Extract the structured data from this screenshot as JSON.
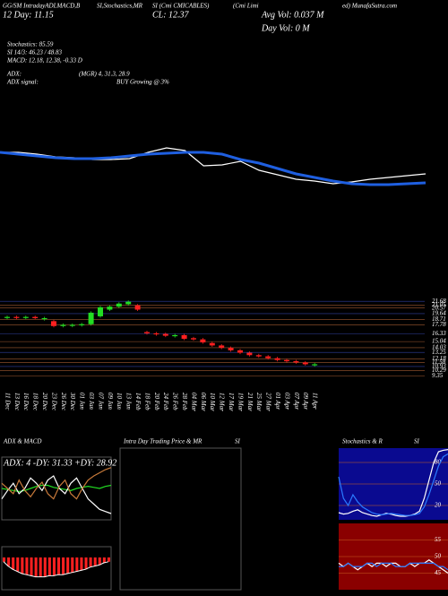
{
  "header": {
    "t1": "GG/SM IntradayADLMACD,B",
    "t2": "SI,Stochastics,MR",
    "t3": "SI (Cmi CMICABLES)",
    "t4": "(Cmi Limi",
    "t5": "ed) MunafaSutra.com",
    "day": "12 Day: 11.15",
    "close": "CL: 12.37",
    "avg_vol": "Avg Vol: 0.037 M",
    "day_vol": "Day Vol: 0 M",
    "stoch": "Stochastics: 85.59",
    "si": "SI 14/3: 46.23 / 48.83",
    "macd": "MACD: 12.18, 12.38, -0.33 D",
    "adx": "ADX:",
    "adx_vals": "(MGR) 4, 31.3, 28.9",
    "adx_signal": "ADX signal:",
    "adx_signal_val": "BUY Growing @ 3%",
    "intraday_title": "Intra Day Trading Price & MR",
    "intraday_si": "SI",
    "stoch_title": "Stochastics & R",
    "stoch_si": "SI"
  },
  "chart_data": [
    {
      "type": "line",
      "ylim": [
        0,
        100
      ],
      "series": [
        {
          "name": "Price",
          "color": "#ffffff",
          "values": [
            70,
            70,
            68,
            65,
            64,
            62,
            62,
            63,
            70,
            75,
            72,
            55,
            56,
            60,
            50,
            45,
            40,
            38,
            35,
            37,
            40,
            42,
            44,
            46
          ]
        },
        {
          "name": "Average",
          "color": "#1f5fe0",
          "values": [
            70,
            68,
            66,
            64,
            63,
            63,
            64,
            66,
            68,
            69,
            70,
            70,
            68,
            62,
            58,
            52,
            46,
            42,
            38,
            35,
            34,
            34,
            35,
            36
          ]
        }
      ]
    },
    {
      "type": "candlestick",
      "ylim": [
        9,
        22
      ],
      "yticks": [
        21.68,
        21.05,
        20.57,
        19.64,
        18.71,
        17.78,
        16.33,
        15.04,
        14.03,
        13.25,
        12.18,
        11.58,
        10.93,
        10.29,
        9.35
      ],
      "categories": [
        "11 Dec",
        "13 Dec",
        "16 Dec",
        "18 Dec",
        "20 Dec",
        "23 Dec",
        "26 Dec",
        "30 Dec",
        "01 Jan",
        "03 Jan",
        "07 Jan",
        "09 Jan",
        "10 Jan",
        "13 Jan",
        "14 Feb",
        "18 Feb",
        "20 Feb",
        "24 Feb",
        "26 Feb",
        "28 Feb",
        "04 Mar",
        "06 Mar",
        "10 Mar",
        "12 Mar",
        "17 Mar",
        "19 Mar",
        "21 Mar",
        "25 Mar",
        "27 Mar",
        "01 Apr",
        "03 Apr",
        "07 Apr",
        "09 Apr",
        "11 Apr"
      ],
      "open": [
        19.1,
        19.1,
        19.0,
        19.1,
        18.9,
        18.4,
        17.6,
        17.8,
        17.9,
        17.9,
        19.2,
        20.3,
        20.8,
        21.2,
        21.0,
        16.6,
        16.4,
        16.3,
        16.0,
        16.1,
        15.6,
        15.4,
        14.8,
        14.4,
        14.0,
        13.6,
        13.2,
        12.8,
        12.6,
        12.3,
        12.0,
        11.8,
        11.6,
        11.3
      ],
      "close": [
        19.1,
        19.0,
        19.1,
        18.9,
        18.9,
        17.6,
        17.8,
        17.8,
        17.9,
        19.8,
        20.7,
        20.8,
        21.3,
        21.6,
        20.3,
        16.4,
        16.3,
        16.0,
        16.1,
        15.5,
        15.4,
        14.9,
        14.4,
        14.0,
        13.6,
        13.2,
        12.8,
        12.6,
        12.3,
        12.0,
        11.8,
        11.6,
        11.3,
        11.3
      ]
    },
    {
      "type": "line",
      "title": "ADX & MACD",
      "subtitle": "ADX: 4 -DY: 31.33 +DY: 28.92",
      "ylim": [
        0,
        60
      ],
      "series": [
        {
          "name": "ADX",
          "color": "#22dd22",
          "values": [
            30,
            29,
            28,
            27,
            28,
            30,
            32,
            33,
            33,
            31,
            30,
            29,
            28,
            30,
            31,
            32,
            31,
            30,
            32,
            33
          ]
        },
        {
          "name": "+DY",
          "color": "#ffffff",
          "values": [
            20,
            28,
            35,
            25,
            30,
            40,
            35,
            28,
            38,
            42,
            30,
            25,
            35,
            40,
            30,
            20,
            15,
            10,
            8,
            6
          ]
        },
        {
          "name": "-DY",
          "color": "#c87a3a",
          "values": [
            35,
            30,
            25,
            38,
            28,
            22,
            30,
            36,
            25,
            20,
            32,
            38,
            25,
            20,
            30,
            38,
            42,
            45,
            48,
            50
          ]
        }
      ]
    },
    {
      "type": "bar",
      "color": "#ff2020",
      "ylim": [
        -3,
        1
      ],
      "values": [
        -0.4,
        -0.8,
        -1.1,
        -1.3,
        -1.5,
        -1.6,
        -1.7,
        -1.8,
        -1.8,
        -1.8,
        -1.7,
        -1.7,
        -1.6,
        -1.6,
        -1.5,
        -1.4,
        -1.3,
        -1.2,
        -1.1,
        -0.9,
        -0.8,
        -0.7,
        -0.5,
        -0.4
      ]
    },
    {
      "type": "line",
      "ylim": [
        0,
        100
      ],
      "yticks": [
        20,
        50,
        80
      ],
      "bg": "#0a0a90",
      "series": [
        {
          "name": "Stochastic",
          "color": "#ffffff",
          "values": [
            10,
            8,
            9,
            12,
            14,
            10,
            8,
            6,
            5,
            7,
            9,
            8,
            6,
            5,
            5,
            6,
            8,
            12,
            30,
            55,
            80,
            95,
            97,
            98
          ]
        },
        {
          "name": "Signal",
          "color": "#2a7aff",
          "values": [
            60,
            30,
            20,
            35,
            25,
            18,
            14,
            10,
            8,
            7,
            8,
            9,
            8,
            7,
            6,
            6,
            7,
            9,
            18,
            35,
            55,
            75,
            88,
            92
          ]
        }
      ]
    },
    {
      "type": "line",
      "ylim": [
        40,
        60
      ],
      "yticks": [
        45,
        50,
        55
      ],
      "bg": "#8a0000",
      "series": [
        {
          "name": "MRSI",
          "color": "#ffffff",
          "values": [
            48,
            47,
            48,
            47,
            46,
            47,
            48,
            47,
            48,
            48,
            47,
            48,
            48,
            47,
            47,
            48,
            47,
            48,
            48,
            49,
            48,
            47,
            46,
            45
          ]
        },
        {
          "name": "RSI",
          "color": "#2a7aff",
          "values": [
            47,
            47,
            48,
            47,
            47,
            47,
            48,
            48,
            47,
            48,
            48,
            48,
            47,
            47,
            47,
            48,
            48,
            48,
            48,
            48,
            48,
            47,
            47,
            46
          ]
        }
      ]
    }
  ]
}
